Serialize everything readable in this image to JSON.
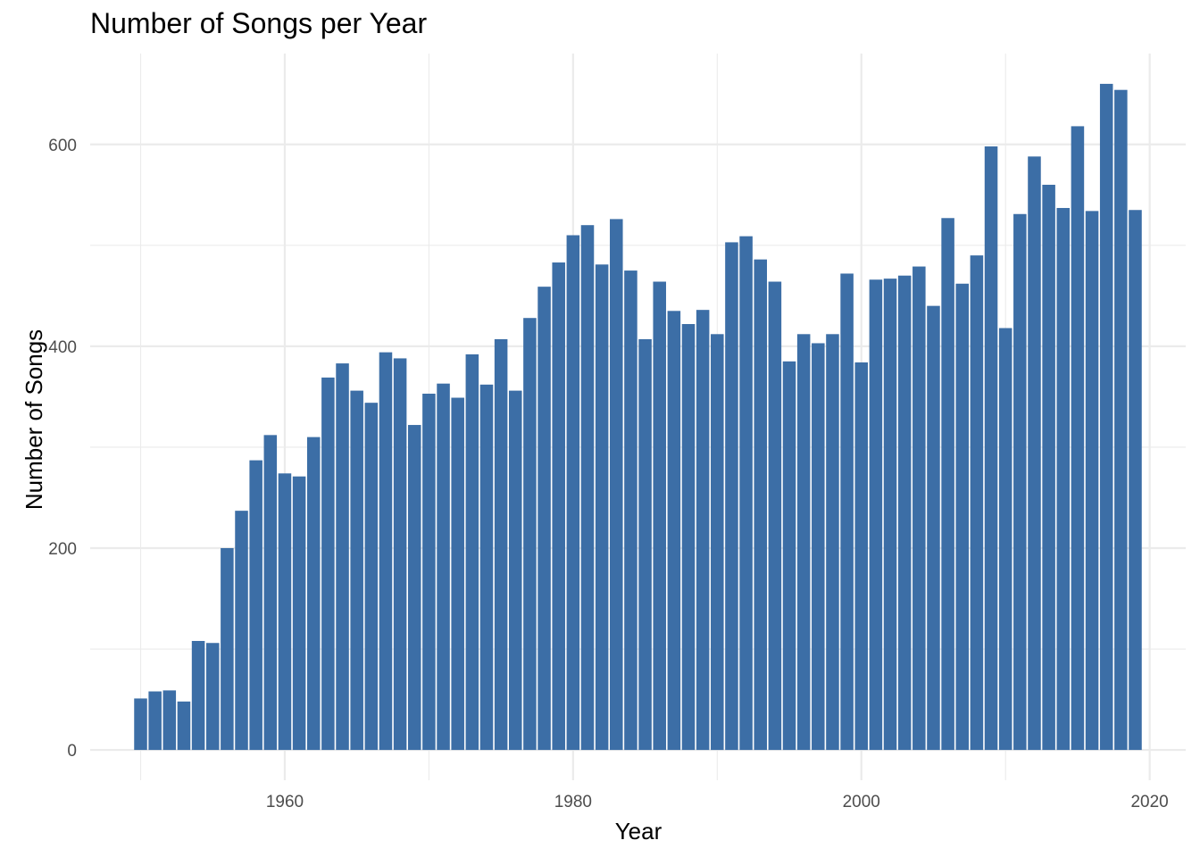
{
  "chart_data": {
    "type": "bar",
    "title": "Number of Songs per Year",
    "xlabel": "Year",
    "ylabel": "Number of Songs",
    "x_ticks": [
      1960,
      1980,
      2000,
      2020
    ],
    "y_ticks": [
      0,
      200,
      400,
      600
    ],
    "xlim": [
      1946.5,
      2022.5
    ],
    "ylim": [
      -30,
      690
    ],
    "grid": true,
    "bar_color": "#3C6EA6",
    "grid_color": "#EBEBEB",
    "x": [
      1950,
      1951,
      1952,
      1953,
      1954,
      1955,
      1956,
      1957,
      1958,
      1959,
      1960,
      1961,
      1962,
      1963,
      1964,
      1965,
      1966,
      1967,
      1968,
      1969,
      1970,
      1971,
      1972,
      1973,
      1974,
      1975,
      1976,
      1977,
      1978,
      1979,
      1980,
      1981,
      1982,
      1983,
      1984,
      1985,
      1986,
      1987,
      1988,
      1989,
      1990,
      1991,
      1992,
      1993,
      1994,
      1995,
      1996,
      1997,
      1998,
      1999,
      2000,
      2001,
      2002,
      2003,
      2004,
      2005,
      2006,
      2007,
      2008,
      2009,
      2010,
      2011,
      2012,
      2013,
      2014,
      2015,
      2016,
      2017,
      2018,
      2019
    ],
    "values": [
      51,
      58,
      59,
      48,
      108,
      106,
      200,
      237,
      287,
      312,
      274,
      271,
      310,
      369,
      383,
      356,
      344,
      394,
      388,
      322,
      353,
      363,
      349,
      392,
      362,
      407,
      356,
      428,
      459,
      483,
      510,
      520,
      481,
      526,
      475,
      407,
      464,
      435,
      422,
      436,
      412,
      503,
      509,
      486,
      464,
      385,
      412,
      403,
      412,
      472,
      384,
      466,
      467,
      470,
      479,
      440,
      527,
      462,
      490,
      598,
      418,
      531,
      588,
      560,
      537,
      618,
      534,
      660,
      654,
      535
    ]
  }
}
